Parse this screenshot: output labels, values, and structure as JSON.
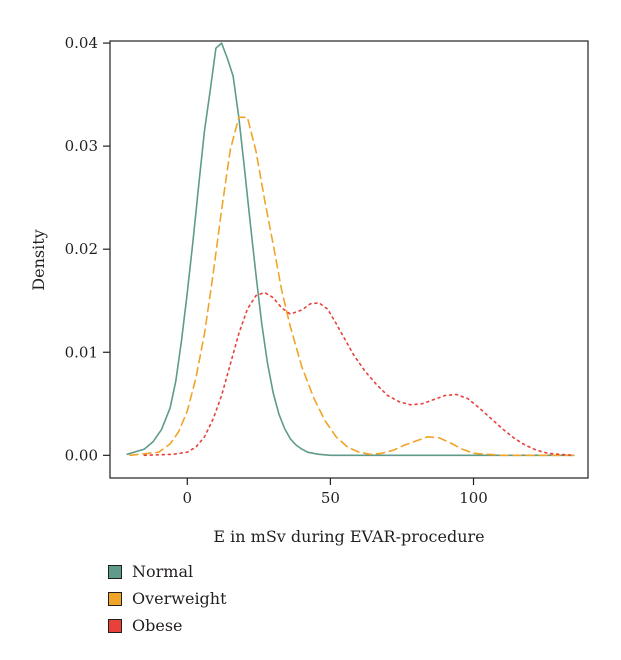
{
  "chart_data": {
    "type": "line",
    "xlabel": "E in mSv during EVAR-procedure",
    "ylabel": "Density",
    "xlim": [
      -27,
      140
    ],
    "ylim": [
      -0.0022,
      0.0402
    ],
    "x_ticks": [
      0,
      50,
      100
    ],
    "y_ticks": [
      0.0,
      0.01,
      0.02,
      0.03,
      0.04
    ],
    "x_tick_labels": [
      "0",
      "50",
      "100"
    ],
    "y_tick_labels": [
      "0.00",
      "0.01",
      "0.02",
      "0.03",
      "0.04"
    ],
    "grid": false,
    "legend_position": "bottom-left, below plot",
    "series": [
      {
        "name": "Normal",
        "color": "#5f9b8b",
        "style": "solid",
        "x": [
          -21,
          -15,
          -12,
          -9,
          -6,
          -4,
          -2,
          0,
          2,
          4,
          6,
          8,
          10,
          12,
          14,
          16,
          18,
          20,
          22,
          24,
          26,
          28,
          30,
          32,
          34,
          36,
          38,
          40,
          42,
          44,
          46,
          50,
          60,
          80,
          100,
          120,
          135
        ],
        "y": [
          0.0001,
          0.0006,
          0.0013,
          0.0025,
          0.0046,
          0.0072,
          0.0112,
          0.0158,
          0.0208,
          0.0262,
          0.0315,
          0.0354,
          0.0395,
          0.04,
          0.0385,
          0.0368,
          0.0328,
          0.0278,
          0.0225,
          0.0175,
          0.0128,
          0.009,
          0.0061,
          0.004,
          0.0026,
          0.0016,
          0.001,
          0.0006,
          0.0003,
          0.0002,
          0.0001,
          0.0,
          0.0,
          0.0,
          0.0,
          0.0,
          0.0
        ]
      },
      {
        "name": "Overweight",
        "color": "#f0a428",
        "style": "dashed",
        "x": [
          -20,
          -10,
          -6,
          -3,
          0,
          3,
          6,
          9,
          12,
          15,
          18,
          21,
          24,
          27,
          30,
          33,
          36,
          40,
          44,
          48,
          52,
          56,
          60,
          64,
          68,
          72,
          76,
          80,
          84,
          88,
          92,
          96,
          100,
          105,
          110,
          120,
          135
        ],
        "y": [
          0.0,
          0.0003,
          0.0011,
          0.0023,
          0.0043,
          0.0075,
          0.0118,
          0.0175,
          0.0238,
          0.0296,
          0.0328,
          0.0328,
          0.0295,
          0.0248,
          0.0205,
          0.016,
          0.0125,
          0.0086,
          0.0057,
          0.0034,
          0.0018,
          0.0008,
          0.0003,
          0.0001,
          0.0002,
          0.0005,
          0.001,
          0.0014,
          0.0018,
          0.0017,
          0.0012,
          0.0006,
          0.0002,
          0.0001,
          0.0,
          0.0,
          0.0
        ]
      },
      {
        "name": "Obese",
        "color": "#e8413a",
        "style": "dotted",
        "x": [
          -15,
          -5,
          0,
          3,
          6,
          9,
          12,
          15,
          18,
          21,
          24,
          27,
          30,
          33,
          36,
          40,
          43,
          46,
          49,
          52,
          55,
          58,
          62,
          66,
          70,
          74,
          78,
          82,
          86,
          90,
          94,
          98,
          102,
          106,
          110,
          114,
          118,
          122,
          126,
          130,
          135
        ],
        "y": [
          0.0,
          0.0001,
          0.0003,
          0.0008,
          0.0018,
          0.0035,
          0.0058,
          0.0088,
          0.0118,
          0.0142,
          0.0155,
          0.0158,
          0.0153,
          0.0143,
          0.0137,
          0.0141,
          0.0147,
          0.0148,
          0.0142,
          0.0128,
          0.0113,
          0.0098,
          0.0082,
          0.0069,
          0.0058,
          0.0052,
          0.0049,
          0.005,
          0.0054,
          0.0058,
          0.0059,
          0.0055,
          0.0046,
          0.0036,
          0.0026,
          0.0017,
          0.001,
          0.0005,
          0.0002,
          0.0001,
          0.0
        ]
      }
    ]
  }
}
